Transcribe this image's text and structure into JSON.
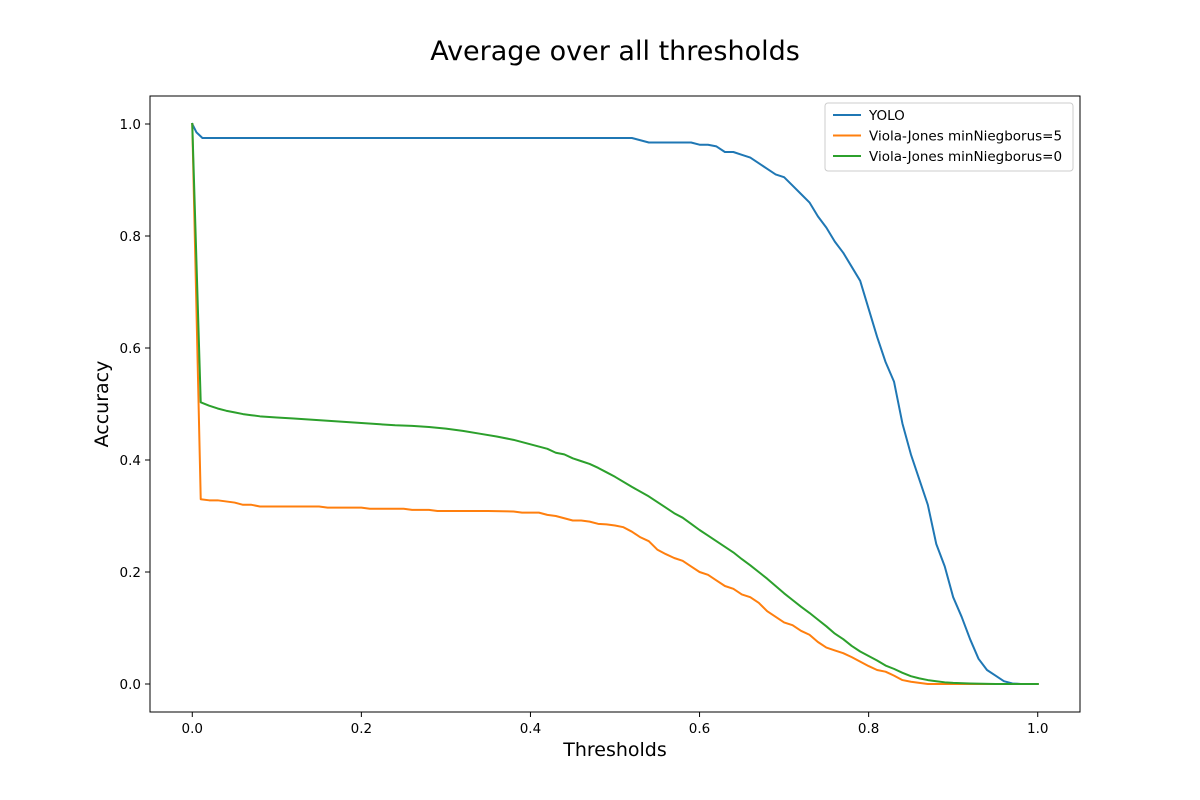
{
  "chart_data": {
    "type": "line",
    "title": "Average over all thresholds",
    "xlabel": "Thresholds",
    "ylabel": "Accuracy",
    "xlim": [
      -0.05,
      1.05
    ],
    "ylim": [
      -0.05,
      1.05
    ],
    "xticks": [
      "0.0",
      "0.2",
      "0.4",
      "0.6",
      "0.8",
      "1.0"
    ],
    "yticks": [
      "0.0",
      "0.2",
      "0.4",
      "0.6",
      "0.8",
      "1.0"
    ],
    "grid": false,
    "legend_position": "top-right",
    "series": [
      {
        "name": "YOLO",
        "color": "#1f77b4",
        "points": [
          [
            0,
            1.0
          ],
          [
            0.005,
            0.985
          ],
          [
            0.012,
            0.975
          ],
          [
            0.05,
            0.975
          ],
          [
            0.1,
            0.975
          ],
          [
            0.2,
            0.975
          ],
          [
            0.3,
            0.975
          ],
          [
            0.4,
            0.975
          ],
          [
            0.5,
            0.975
          ],
          [
            0.52,
            0.975
          ],
          [
            0.54,
            0.967
          ],
          [
            0.56,
            0.967
          ],
          [
            0.58,
            0.967
          ],
          [
            0.59,
            0.967
          ],
          [
            0.6,
            0.963
          ],
          [
            0.61,
            0.963
          ],
          [
            0.62,
            0.96
          ],
          [
            0.63,
            0.95
          ],
          [
            0.64,
            0.95
          ],
          [
            0.65,
            0.945
          ],
          [
            0.66,
            0.94
          ],
          [
            0.67,
            0.93
          ],
          [
            0.68,
            0.92
          ],
          [
            0.69,
            0.91
          ],
          [
            0.7,
            0.905
          ],
          [
            0.71,
            0.89
          ],
          [
            0.72,
            0.875
          ],
          [
            0.73,
            0.86
          ],
          [
            0.74,
            0.835
          ],
          [
            0.75,
            0.815
          ],
          [
            0.76,
            0.79
          ],
          [
            0.77,
            0.77
          ],
          [
            0.78,
            0.745
          ],
          [
            0.79,
            0.72
          ],
          [
            0.8,
            0.67
          ],
          [
            0.81,
            0.62
          ],
          [
            0.82,
            0.575
          ],
          [
            0.83,
            0.54
          ],
          [
            0.84,
            0.465
          ],
          [
            0.85,
            0.41
          ],
          [
            0.86,
            0.365
          ],
          [
            0.87,
            0.32
          ],
          [
            0.88,
            0.25
          ],
          [
            0.89,
            0.21
          ],
          [
            0.9,
            0.155
          ],
          [
            0.91,
            0.12
          ],
          [
            0.92,
            0.08
          ],
          [
            0.93,
            0.045
          ],
          [
            0.94,
            0.025
          ],
          [
            0.95,
            0.015
          ],
          [
            0.96,
            0.005
          ],
          [
            0.97,
            0.001
          ],
          [
            0.98,
            0.0
          ],
          [
            1.0,
            0.0
          ]
        ]
      },
      {
        "name": "Viola-Jones minNiegborus=5",
        "color": "#ff7f0e",
        "points": [
          [
            0,
            1.0
          ],
          [
            0.01,
            0.33
          ],
          [
            0.02,
            0.328
          ],
          [
            0.03,
            0.328
          ],
          [
            0.04,
            0.326
          ],
          [
            0.05,
            0.324
          ],
          [
            0.06,
            0.32
          ],
          [
            0.07,
            0.32
          ],
          [
            0.08,
            0.317
          ],
          [
            0.1,
            0.317
          ],
          [
            0.15,
            0.317
          ],
          [
            0.16,
            0.315
          ],
          [
            0.2,
            0.315
          ],
          [
            0.21,
            0.313
          ],
          [
            0.25,
            0.313
          ],
          [
            0.26,
            0.311
          ],
          [
            0.28,
            0.311
          ],
          [
            0.29,
            0.309
          ],
          [
            0.3,
            0.309
          ],
          [
            0.35,
            0.309
          ],
          [
            0.38,
            0.308
          ],
          [
            0.39,
            0.306
          ],
          [
            0.41,
            0.306
          ],
          [
            0.42,
            0.302
          ],
          [
            0.43,
            0.3
          ],
          [
            0.44,
            0.296
          ],
          [
            0.45,
            0.292
          ],
          [
            0.46,
            0.292
          ],
          [
            0.47,
            0.29
          ],
          [
            0.48,
            0.286
          ],
          [
            0.49,
            0.285
          ],
          [
            0.5,
            0.283
          ],
          [
            0.51,
            0.28
          ],
          [
            0.52,
            0.272
          ],
          [
            0.53,
            0.262
          ],
          [
            0.54,
            0.255
          ],
          [
            0.55,
            0.24
          ],
          [
            0.56,
            0.232
          ],
          [
            0.57,
            0.225
          ],
          [
            0.58,
            0.22
          ],
          [
            0.59,
            0.21
          ],
          [
            0.6,
            0.2
          ],
          [
            0.61,
            0.195
          ],
          [
            0.62,
            0.185
          ],
          [
            0.63,
            0.175
          ],
          [
            0.64,
            0.17
          ],
          [
            0.65,
            0.16
          ],
          [
            0.66,
            0.155
          ],
          [
            0.67,
            0.145
          ],
          [
            0.68,
            0.13
          ],
          [
            0.69,
            0.12
          ],
          [
            0.7,
            0.11
          ],
          [
            0.71,
            0.105
          ],
          [
            0.72,
            0.095
          ],
          [
            0.73,
            0.088
          ],
          [
            0.74,
            0.075
          ],
          [
            0.75,
            0.065
          ],
          [
            0.76,
            0.06
          ],
          [
            0.77,
            0.055
          ],
          [
            0.78,
            0.048
          ],
          [
            0.79,
            0.04
          ],
          [
            0.8,
            0.032
          ],
          [
            0.81,
            0.025
          ],
          [
            0.82,
            0.022
          ],
          [
            0.83,
            0.015
          ],
          [
            0.84,
            0.007
          ],
          [
            0.85,
            0.004
          ],
          [
            0.86,
            0.002
          ],
          [
            0.87,
            0.0
          ],
          [
            0.9,
            0.0
          ],
          [
            1.0,
            0.0
          ]
        ]
      },
      {
        "name": "Viola-Jones minNiegborus=0",
        "color": "#2ca02c",
        "points": [
          [
            0,
            1.0
          ],
          [
            0.01,
            0.503
          ],
          [
            0.02,
            0.497
          ],
          [
            0.03,
            0.492
          ],
          [
            0.04,
            0.488
          ],
          [
            0.05,
            0.485
          ],
          [
            0.06,
            0.482
          ],
          [
            0.07,
            0.48
          ],
          [
            0.08,
            0.478
          ],
          [
            0.1,
            0.476
          ],
          [
            0.12,
            0.474
          ],
          [
            0.14,
            0.472
          ],
          [
            0.16,
            0.47
          ],
          [
            0.18,
            0.468
          ],
          [
            0.2,
            0.466
          ],
          [
            0.22,
            0.464
          ],
          [
            0.24,
            0.462
          ],
          [
            0.26,
            0.461
          ],
          [
            0.28,
            0.459
          ],
          [
            0.3,
            0.456
          ],
          [
            0.32,
            0.452
          ],
          [
            0.34,
            0.447
          ],
          [
            0.36,
            0.442
          ],
          [
            0.38,
            0.436
          ],
          [
            0.4,
            0.428
          ],
          [
            0.42,
            0.42
          ],
          [
            0.43,
            0.413
          ],
          [
            0.44,
            0.41
          ],
          [
            0.45,
            0.403
          ],
          [
            0.46,
            0.398
          ],
          [
            0.47,
            0.393
          ],
          [
            0.48,
            0.386
          ],
          [
            0.49,
            0.378
          ],
          [
            0.5,
            0.37
          ],
          [
            0.52,
            0.352
          ],
          [
            0.54,
            0.335
          ],
          [
            0.56,
            0.315
          ],
          [
            0.57,
            0.305
          ],
          [
            0.58,
            0.297
          ],
          [
            0.59,
            0.286
          ],
          [
            0.6,
            0.275
          ],
          [
            0.61,
            0.265
          ],
          [
            0.62,
            0.255
          ],
          [
            0.63,
            0.245
          ],
          [
            0.64,
            0.235
          ],
          [
            0.65,
            0.223
          ],
          [
            0.66,
            0.212
          ],
          [
            0.67,
            0.2
          ],
          [
            0.68,
            0.188
          ],
          [
            0.69,
            0.175
          ],
          [
            0.7,
            0.162
          ],
          [
            0.71,
            0.15
          ],
          [
            0.72,
            0.138
          ],
          [
            0.73,
            0.127
          ],
          [
            0.74,
            0.115
          ],
          [
            0.75,
            0.103
          ],
          [
            0.76,
            0.09
          ],
          [
            0.77,
            0.08
          ],
          [
            0.78,
            0.068
          ],
          [
            0.79,
            0.058
          ],
          [
            0.8,
            0.05
          ],
          [
            0.81,
            0.042
          ],
          [
            0.82,
            0.033
          ],
          [
            0.83,
            0.027
          ],
          [
            0.84,
            0.02
          ],
          [
            0.85,
            0.014
          ],
          [
            0.86,
            0.01
          ],
          [
            0.87,
            0.007
          ],
          [
            0.88,
            0.005
          ],
          [
            0.89,
            0.003
          ],
          [
            0.9,
            0.002
          ],
          [
            0.92,
            0.001
          ],
          [
            0.95,
            0.0
          ],
          [
            1.0,
            0.0
          ]
        ]
      }
    ]
  }
}
